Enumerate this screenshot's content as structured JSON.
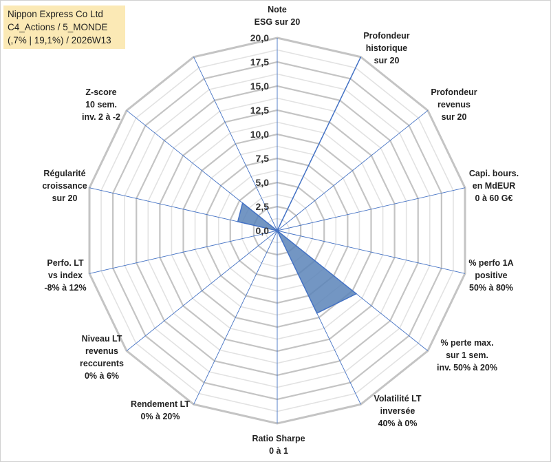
{
  "chart_data": {
    "type": "radar",
    "title": [
      "Nippon Express Co Ltd",
      "C4_Actions / 5_MONDE",
      "(,7% | 19,1%) / 2026W13"
    ],
    "rmin": 0,
    "rmax": 20,
    "ticks": [
      "0,0",
      "2,5",
      "5,0",
      "7,5",
      "10,0",
      "12,5",
      "15,0",
      "17,5",
      "20,0"
    ],
    "tick_values": [
      0,
      2.5,
      5,
      7.5,
      10,
      12.5,
      15,
      17.5,
      20
    ],
    "axes": [
      {
        "label": [
          "Note",
          "ESG sur 20"
        ],
        "value": 0
      },
      {
        "label": [
          "Profondeur",
          "historique",
          "sur 20"
        ],
        "value": 20
      },
      {
        "label": [
          "Profondeur",
          "revenus",
          "sur 20"
        ],
        "value": 0
      },
      {
        "label": [
          "Capi. bours.",
          "en MdEUR",
          "0 à 60 G€"
        ],
        "value": 0
      },
      {
        "label": [
          "% perfo 1A",
          "positive",
          "50% à 80%"
        ],
        "value": 0
      },
      {
        "label": [
          "% perte max.",
          "sur 1 sem.",
          "inv. 50% à 20%"
        ],
        "value": 10.5
      },
      {
        "label": [
          "Volatilité LT",
          "inversée",
          "40% à 0%"
        ],
        "value": 9.5
      },
      {
        "label": [
          "Ratio Sharpe",
          "0 à 1"
        ],
        "value": 0
      },
      {
        "label": [
          "Rendement LT",
          "0% à 20%"
        ],
        "value": 0
      },
      {
        "label": [
          "Niveau LT",
          "revenus",
          "reccurents",
          "0% à 6%"
        ],
        "value": 0
      },
      {
        "label": [
          "Perfo. LT",
          "vs index",
          "-8% à 12%"
        ],
        "value": 0
      },
      {
        "label": [
          "Régularité",
          "croissance",
          "sur 20"
        ],
        "value": 4.2
      },
      {
        "label": [
          "Z-score",
          "10 sem.",
          "inv. 2 à -2"
        ],
        "value": 4.6
      },
      {
        "label": [
          "Z-score",
          "10 sem.",
          "inv. 2 à -2"
        ],
        "value": 0,
        "hidden": true
      }
    ],
    "series": [
      {
        "name": "Nippon Express Co Ltd",
        "color": "#5b84b8",
        "stroke": "#4472c4"
      }
    ]
  }
}
